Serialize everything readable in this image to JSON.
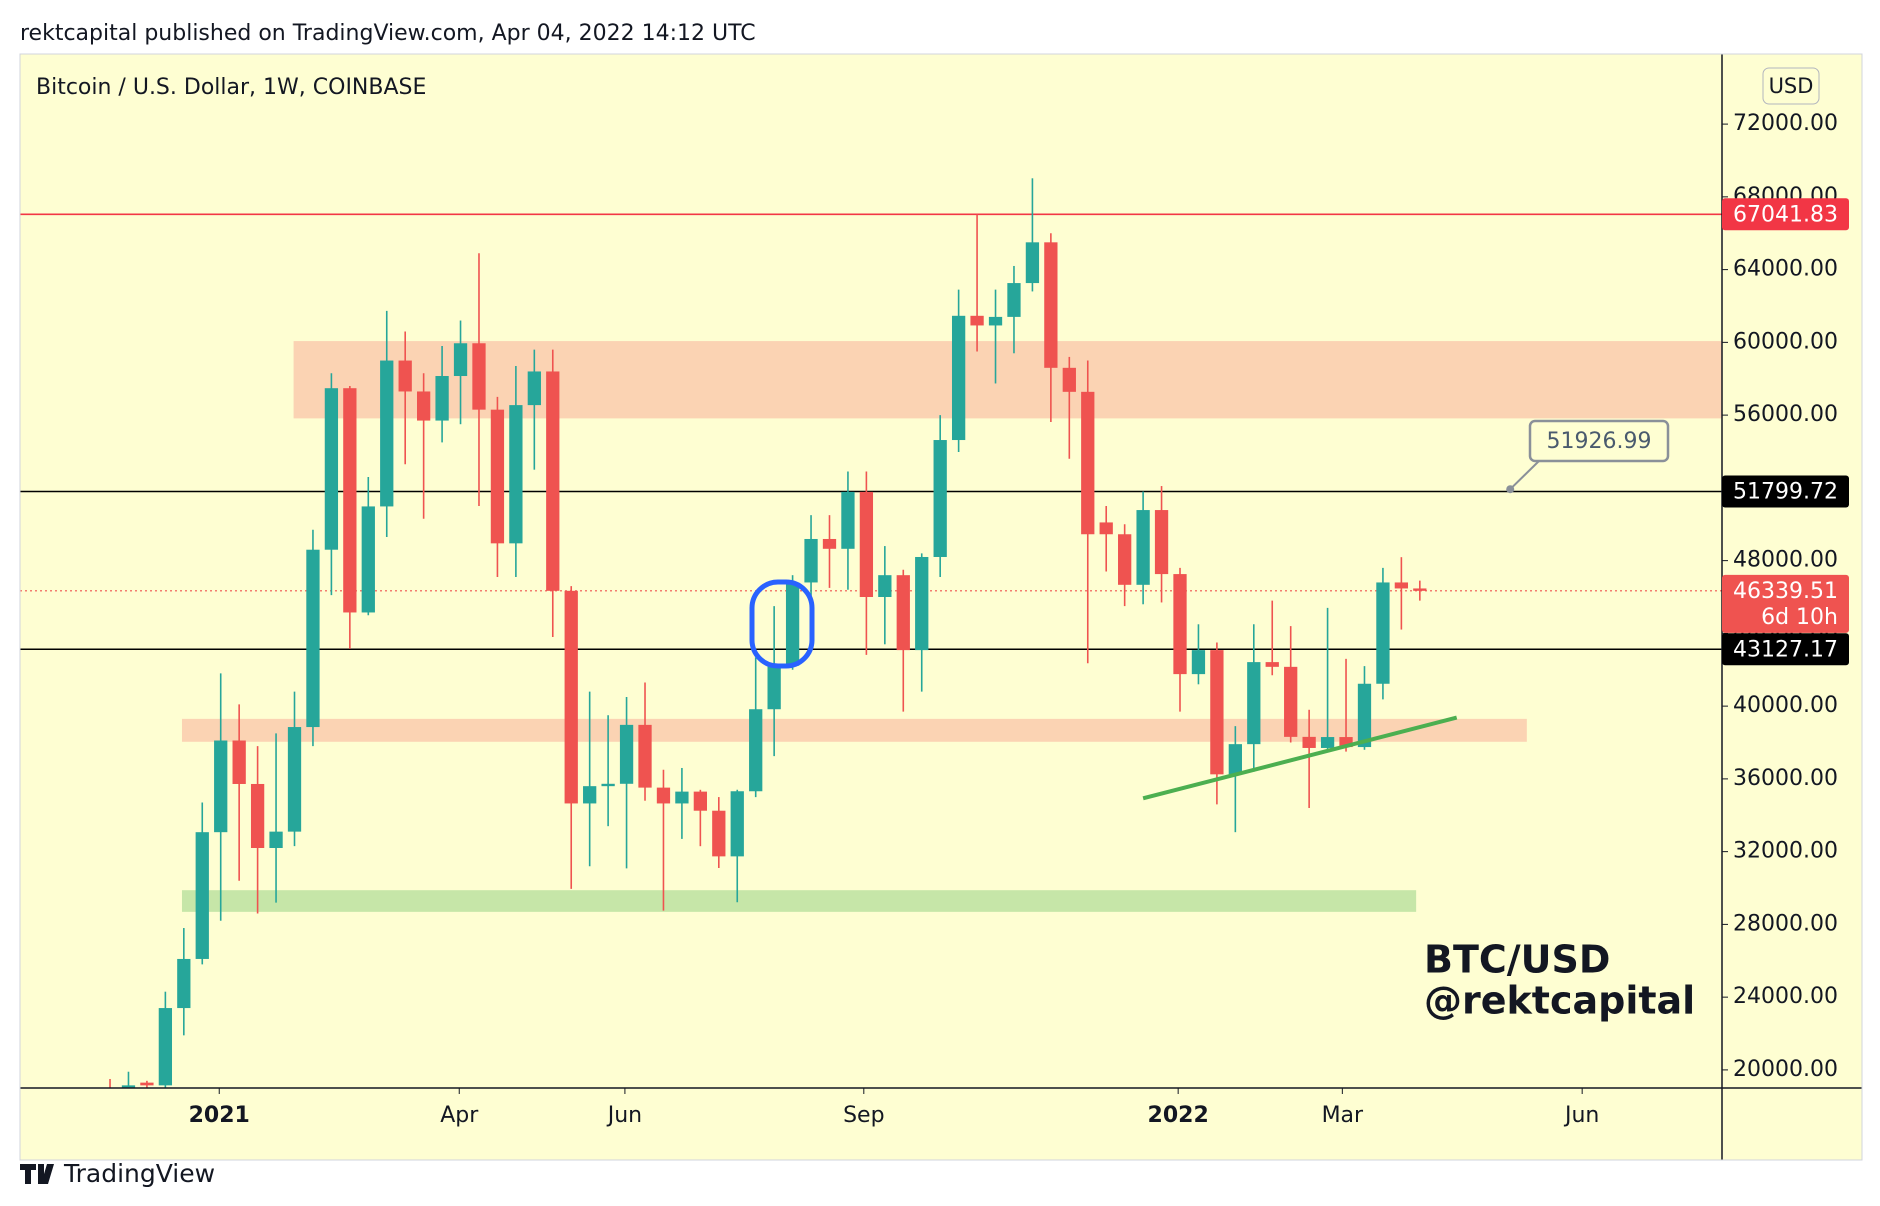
{
  "chart_data": {
    "type": "candlestick",
    "header": "rektcapital published on TradingView.com, Apr 04, 2022 14:12 UTC",
    "title": "Bitcoin / U.S. Dollar, 1W, COINBASE",
    "currency": "USD",
    "watermark": [
      "BTC/USD",
      "@rektcapital"
    ],
    "brand": "TradingView",
    "background": "#fefed2",
    "up_color": "#26a69a",
    "down_color": "#ef5350",
    "x": [
      0,
      1,
      2,
      3,
      4,
      5,
      6,
      7,
      8,
      9,
      10,
      11,
      12,
      13,
      14,
      15,
      16,
      17,
      18,
      19,
      20,
      21,
      22,
      23,
      24,
      25,
      26,
      27,
      28,
      29,
      30,
      31,
      32,
      33,
      34,
      35,
      36,
      37,
      38,
      39,
      40,
      41,
      42,
      43,
      44,
      45,
      46,
      47,
      48,
      49,
      50,
      51,
      52,
      53,
      54,
      55,
      56,
      57,
      58,
      59,
      60,
      61,
      62,
      63,
      64,
      65,
      66,
      67,
      68,
      69,
      70,
      71
    ],
    "open": [
      18400,
      18200,
      19300,
      19150,
      23400,
      26100,
      33070,
      38110,
      35720,
      32200,
      33100,
      38850,
      48600,
      57480,
      45150,
      50980,
      59000,
      57300,
      55700,
      58150,
      59950,
      56300,
      48950,
      56550,
      58400,
      46340,
      34650,
      35600,
      35730,
      38970,
      35520,
      34650,
      35300,
      34250,
      31740,
      35320,
      39830,
      42220,
      46800,
      49190,
      48650,
      51780,
      46000,
      47200,
      43080,
      48200,
      54630,
      61460,
      60930,
      61400,
      63260,
      65500,
      58600,
      57280,
      50100,
      49450,
      46670,
      50780,
      47260,
      41760,
      43080,
      36250,
      37910,
      42420,
      42160,
      38310,
      37700,
      38300,
      37750,
      41230,
      46800,
      46470
    ],
    "high": [
      19500,
      19900,
      19400,
      24300,
      27800,
      34700,
      41800,
      40100,
      37800,
      38500,
      40800,
      49700,
      58300,
      57600,
      52600,
      61730,
      60600,
      58300,
      59800,
      61200,
      64900,
      57000,
      58700,
      59600,
      59600,
      46600,
      40800,
      39500,
      40500,
      41300,
      36500,
      36600,
      35400,
      35000,
      35400,
      42680,
      45500,
      47200,
      50500,
      50500,
      52900,
      52900,
      48800,
      47500,
      48400,
      56000,
      62900,
      67030,
      62900,
      64200,
      69020,
      66000,
      59200,
      59000,
      51000,
      50000,
      51800,
      52100,
      47600,
      44500,
      43500,
      38900,
      44500,
      45800,
      44400,
      39800,
      45400,
      42600,
      42200,
      47600,
      48190,
      46900
    ],
    "low": [
      16300,
      18000,
      17600,
      19000,
      21900,
      25800,
      28200,
      30400,
      28600,
      29200,
      32300,
      37800,
      46100,
      43150,
      45000,
      49300,
      53300,
      50300,
      54500,
      55500,
      51000,
      47100,
      47100,
      53000,
      43800,
      29950,
      31200,
      33400,
      31080,
      34800,
      28760,
      32700,
      32300,
      31100,
      29220,
      35000,
      37250,
      42000,
      43900,
      46500,
      46400,
      42820,
      43400,
      39700,
      40800,
      47100,
      53970,
      59500,
      57740,
      59400,
      62800,
      55620,
      53600,
      42360,
      47400,
      45500,
      45600,
      45700,
      39700,
      41200,
      34600,
      33070,
      36400,
      41700,
      38000,
      34400,
      37500,
      37500,
      37600,
      40370,
      44210,
      45800
    ],
    "close": [
      18200,
      19150,
      19150,
      23400,
      26100,
      33070,
      38110,
      35720,
      32200,
      33100,
      38850,
      48600,
      57480,
      45150,
      50980,
      59000,
      57300,
      55700,
      58150,
      59950,
      56300,
      48950,
      56550,
      58400,
      46340,
      34650,
      35600,
      35730,
      38970,
      35520,
      34650,
      35300,
      34250,
      31740,
      35320,
      39830,
      42220,
      46800,
      49190,
      48650,
      51780,
      46000,
      47200,
      43080,
      48200,
      54630,
      61460,
      60930,
      61400,
      63260,
      65500,
      58600,
      57280,
      49450,
      49450,
      46670,
      50780,
      47260,
      41760,
      43080,
      36250,
      37910,
      42420,
      42160,
      38310,
      37700,
      38300,
      37750,
      41230,
      46800,
      46470,
      46339.51
    ],
    "xlim": [
      -4.88,
      87.38
    ],
    "xticks": [
      {
        "value": 5.92,
        "label": "2021"
      },
      {
        "value": 18.93,
        "label": "Apr"
      },
      {
        "value": 27.91,
        "label": "Jun"
      },
      {
        "value": 40.86,
        "label": "Sep"
      },
      {
        "value": 57.9,
        "label": "2022"
      },
      {
        "value": 66.8,
        "label": "Mar"
      },
      {
        "value": 79.8,
        "label": "Jun"
      }
    ],
    "ylim": [
      19005,
      75854
    ],
    "yticks": [
      {
        "value": 20000,
        "label": "20000.00"
      },
      {
        "value": 24000,
        "label": "24000.00"
      },
      {
        "value": 28000,
        "label": "28000.00"
      },
      {
        "value": 32000,
        "label": "32000.00"
      },
      {
        "value": 36000,
        "label": "36000.00"
      },
      {
        "value": 40000,
        "label": "40000.00"
      },
      {
        "value": 44000,
        "label": "44000.00"
      },
      {
        "value": 48000,
        "label": "48000.00"
      },
      {
        "value": 52000,
        "label": "52000.00"
      },
      {
        "value": 56000,
        "label": "56000.00"
      },
      {
        "value": 60000,
        "label": "60000.00"
      },
      {
        "value": 64000,
        "label": "64000.00"
      },
      {
        "value": 68000,
        "label": "68000.00"
      },
      {
        "value": 72000,
        "label": "72000.00"
      }
    ],
    "zones": [
      {
        "x": [
          9.95,
          87.38
        ],
        "y": [
          55820,
          60070
        ],
        "color": "#fbd3b3"
      },
      {
        "x": [
          3.9,
          76.8
        ],
        "y": [
          38040,
          39300
        ],
        "color": "#fbd3b3"
      },
      {
        "x": [
          3.9,
          70.8
        ],
        "y": [
          28690,
          29880
        ],
        "color": "#c6e6a8"
      }
    ],
    "levels": [
      {
        "value": 67041.83,
        "color": "#f23645"
      },
      {
        "value": 51799.72,
        "color": "#000000"
      },
      {
        "value": 43127.17,
        "color": "#000000"
      }
    ],
    "last_price": {
      "value": 46339.51,
      "countdown": "6d 10h",
      "color": "#ef5350"
    },
    "callout": {
      "value": 51926.99,
      "x": 75.9
    },
    "trendline": {
      "x": [
        56,
        73
      ],
      "y": [
        34930,
        39370
      ],
      "color": "#4caf50"
    }
  }
}
